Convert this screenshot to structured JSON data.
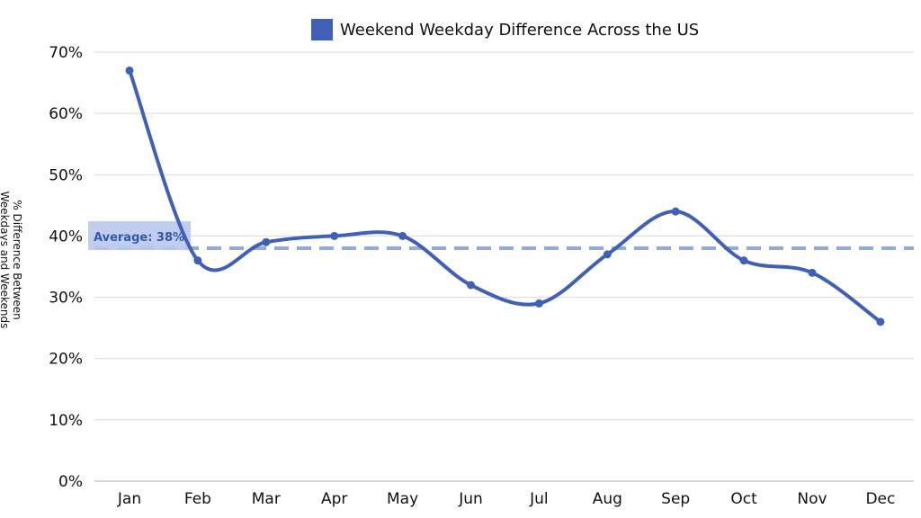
{
  "chart_data": {
    "type": "line",
    "categories": [
      "Jan",
      "Feb",
      "Mar",
      "Apr",
      "May",
      "Jun",
      "Jul",
      "Aug",
      "Sep",
      "Oct",
      "Nov",
      "Dec"
    ],
    "series": [
      {
        "name": "Weekend Weekday Difference Across the US",
        "values": [
          67,
          36,
          39,
          40,
          40,
          32,
          29,
          37,
          44,
          36,
          34,
          26
        ],
        "color": "#4060b8"
      }
    ],
    "ylabel_lines": [
      "% Difference Between",
      "Weekdays and Weekends"
    ],
    "ylim": [
      0,
      70
    ],
    "y_ticks": [
      0,
      10,
      20,
      30,
      40,
      50,
      60,
      70
    ],
    "y_tick_labels": [
      "0%",
      "10%",
      "20%",
      "30%",
      "40%",
      "50%",
      "60%",
      "70%"
    ],
    "average": {
      "value": 38,
      "label": "Average: 38%",
      "color": "#94a9dc",
      "label_bg": "#b9c8ec",
      "label_color": "#3558a8"
    },
    "grid": true,
    "legend": "top-center",
    "smooth": true
  }
}
